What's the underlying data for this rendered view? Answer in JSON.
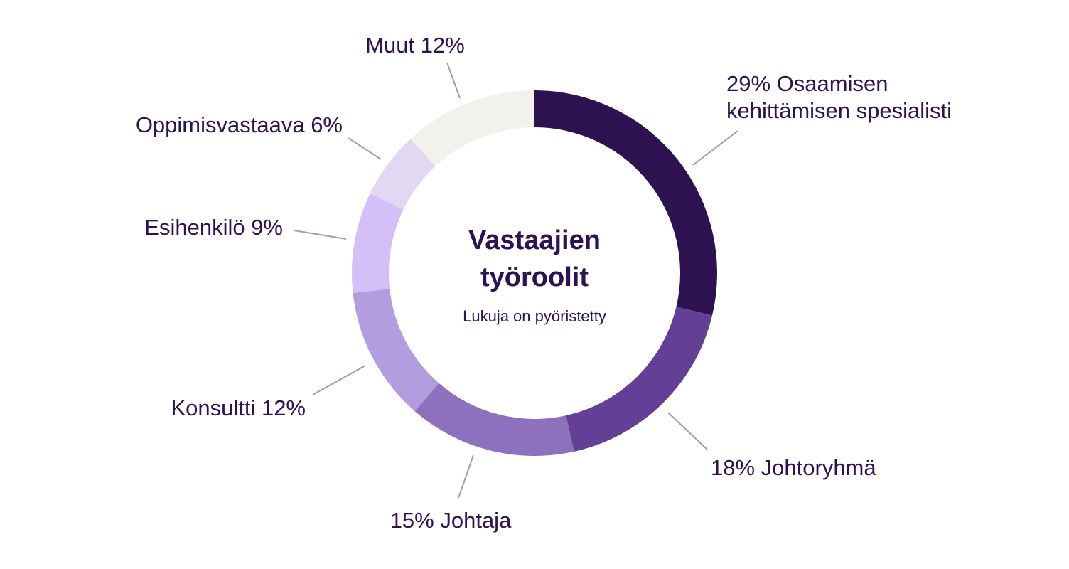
{
  "chart_data": {
    "type": "pie",
    "variant": "donut",
    "title_lines": [
      "Vastaajien",
      "työroolit"
    ],
    "subtitle": "Lukuja on pyöristetty",
    "slices": [
      {
        "name": "Osaamisen kehittämisen spesialisti",
        "value": 29,
        "color": "#2e1150",
        "label_lines": [
          "29% Osaamisen",
          "kehittämisen spesialisti"
        ]
      },
      {
        "name": "Johtoryhmä",
        "value": 18,
        "color": "#633f96",
        "label_lines": [
          "18% Johtoryhmä"
        ]
      },
      {
        "name": "Johtaja",
        "value": 15,
        "color": "#8d70be",
        "label_lines": [
          "15% Johtaja"
        ]
      },
      {
        "name": "Konsultti",
        "value": 12,
        "color": "#b49ddf",
        "label_lines": [
          "Konsultti 12%"
        ]
      },
      {
        "name": "Esihenkilö",
        "value": 9,
        "color": "#d4c0f6",
        "label_lines": [
          "Esihenkilö 9%"
        ]
      },
      {
        "name": "Oppimisvastaava",
        "value": 6,
        "color": "#e2d8f2",
        "label_lines": [
          "Oppimisvastaava 6%"
        ]
      },
      {
        "name": "Muut",
        "value": 12,
        "color": "#f2f1eb",
        "label_lines": [
          "Muut 12%"
        ]
      }
    ]
  }
}
